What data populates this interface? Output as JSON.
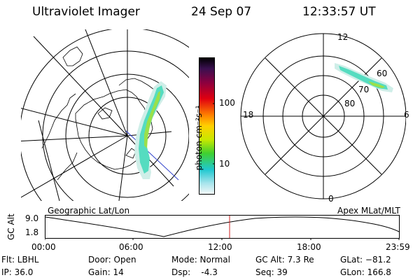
{
  "header": {
    "instrument": "Ultraviolet Imager",
    "date": "24 Sep 07",
    "time": "12:33:57 UT"
  },
  "colorbar": {
    "unit_label": "photon cm⁻²s⁻¹",
    "ticks": [
      "100",
      "10"
    ]
  },
  "apex_plot": {
    "mlt_labels": {
      "top": "12",
      "left": "18",
      "right": "6",
      "bottom": "0"
    },
    "lat_labels": [
      "60",
      "70",
      "80"
    ]
  },
  "timeline": {
    "left_title": "Geographic Lat/Lon",
    "right_title": "Apex MLat/MLT",
    "y_label": "GC Alt",
    "y_ticks": [
      "9.0",
      "1.8"
    ],
    "x_ticks": [
      "00:00",
      "06:00",
      "12:00",
      "18:00",
      "23:59"
    ],
    "marker_time": "12:33:57"
  },
  "footer": {
    "flt": "Flt: LBHL",
    "ip": "IP: 36.0",
    "door": "Door: Open",
    "gain": "Gain: 14",
    "mode": "Mode: Normal",
    "dsp": "Dsp:    -4.3",
    "gcalt": "GC Alt: 7.3 Re",
    "seq": "Seq: 39",
    "glat": "GLat: −81.2",
    "glon": "GLon: 166.8"
  }
}
